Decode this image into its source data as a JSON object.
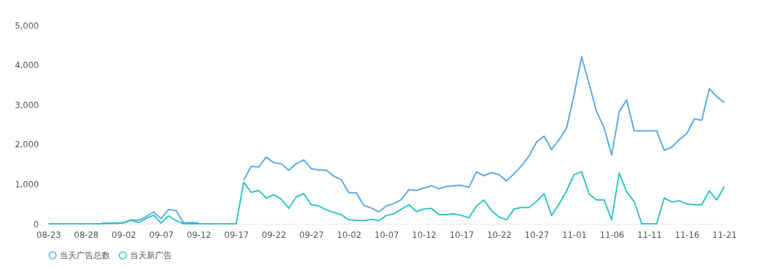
{
  "chart_data": {
    "type": "line",
    "categories": [
      "08-23",
      null,
      null,
      null,
      null,
      "08-28",
      null,
      null,
      null,
      null,
      "09-02",
      null,
      null,
      null,
      null,
      "09-07",
      null,
      null,
      null,
      null,
      "09-12",
      null,
      null,
      null,
      null,
      "09-17",
      null,
      null,
      null,
      null,
      "09-22",
      null,
      null,
      null,
      null,
      "09-27",
      null,
      null,
      null,
      null,
      "10-02",
      null,
      null,
      null,
      null,
      "10-07",
      null,
      null,
      null,
      null,
      "10-12",
      null,
      null,
      null,
      null,
      "10-17",
      null,
      null,
      null,
      null,
      "10-22",
      null,
      null,
      null,
      null,
      "10-27",
      null,
      null,
      null,
      null,
      "11-01",
      null,
      null,
      null,
      null,
      "11-06",
      null,
      null,
      null,
      null,
      "11-11",
      null,
      null,
      null,
      null,
      "11-16",
      null,
      null,
      null,
      null,
      "11-21"
    ],
    "series": [
      {
        "name": "当天广告总数",
        "color": "#5aaae6",
        "values": [
          null,
          null,
          null,
          null,
          null,
          null,
          null,
          10,
          20,
          20,
          30,
          100,
          90,
          180,
          300,
          130,
          360,
          330,
          20,
          30,
          20,
          null,
          null,
          null,
          null,
          null,
          1100,
          1450,
          1430,
          1680,
          1540,
          1510,
          1350,
          1510,
          1610,
          1390,
          1350,
          1350,
          1200,
          1110,
          780,
          780,
          460,
          400,
          300,
          450,
          510,
          610,
          860,
          840,
          900,
          960,
          880,
          940,
          960,
          970,
          920,
          1310,
          1210,
          1290,
          1240,
          1080,
          1260,
          1460,
          1710,
          2060,
          2210,
          1870,
          2120,
          2410,
          3250,
          4200,
          3520,
          2820,
          2420,
          1730,
          2820,
          3120,
          2340,
          2340,
          2340,
          2340,
          1850,
          1930,
          2120,
          2270,
          2640,
          2610,
          3400,
          3200,
          3050
        ]
      },
      {
        "name": "当天新广告",
        "color": "#2ec4c0",
        "values": [
          0,
          0,
          0,
          0,
          0,
          0,
          0,
          0,
          10,
          10,
          20,
          90,
          30,
          130,
          220,
          20,
          200,
          80,
          0,
          0,
          0,
          0,
          0,
          0,
          0,
          0,
          1050,
          790,
          840,
          650,
          730,
          620,
          390,
          680,
          760,
          480,
          450,
          350,
          290,
          230,
          100,
          90,
          80,
          110,
          80,
          210,
          250,
          370,
          480,
          310,
          370,
          390,
          230,
          230,
          250,
          210,
          150,
          450,
          600,
          330,
          170,
          100,
          370,
          410,
          410,
          560,
          760,
          210,
          500,
          830,
          1240,
          1310,
          750,
          600,
          600,
          100,
          1280,
          800,
          560,
          0,
          0,
          0,
          650,
          550,
          580,
          500,
          480,
          480,
          830,
          600,
          940
        ]
      }
    ],
    "ylim": [
      0,
      5000
    ],
    "yticks": [
      0,
      {
        "value": 1000,
        "label": "1,000"
      },
      {
        "value": 2000,
        "label": "2,000"
      },
      {
        "value": 3000,
        "label": "3,000"
      },
      {
        "value": 4000,
        "label": "4,000"
      },
      {
        "value": 5000,
        "label": "5,000"
      }
    ],
    "grid": false,
    "legend": "bottom",
    "marker": "none",
    "line_style": "solid"
  }
}
